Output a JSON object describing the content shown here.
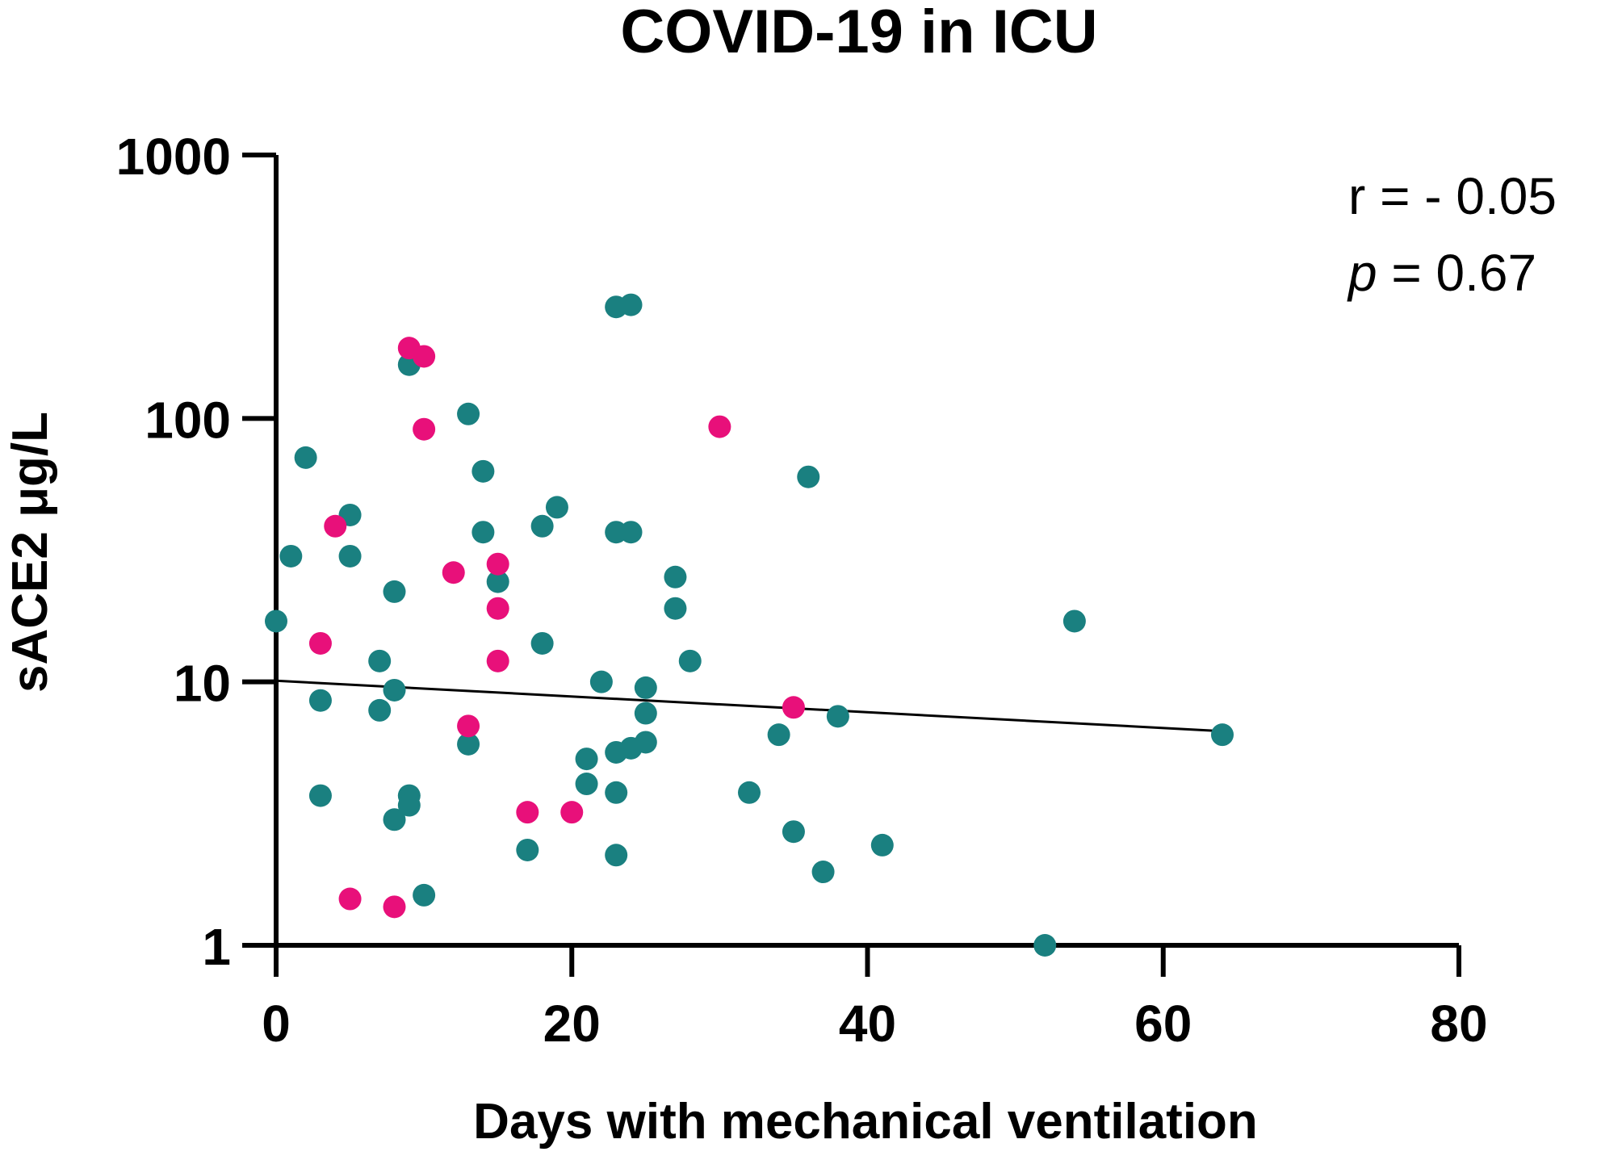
{
  "chart_data": {
    "type": "scatter",
    "title": "COVID-19 in ICU",
    "xlabel": "Days with mechanical ventilation",
    "ylabel": "sACE2 μg/L",
    "xlim": [
      0,
      80
    ],
    "ylim": [
      1,
      1000
    ],
    "yscale": "log",
    "grid": false,
    "x_ticks": [
      0,
      20,
      40,
      60,
      80
    ],
    "y_ticks": [
      1,
      10,
      100,
      1000
    ],
    "x_tick_labels": [
      "0",
      "20",
      "40",
      "60",
      "80"
    ],
    "y_tick_labels": [
      "1",
      "10",
      "100",
      "1000"
    ],
    "series": [
      {
        "name": "teal",
        "color": "#1a8080",
        "points": [
          [
            0,
            17
          ],
          [
            1,
            30
          ],
          [
            2,
            71
          ],
          [
            3,
            8.5
          ],
          [
            3,
            3.7
          ],
          [
            5,
            43
          ],
          [
            5,
            30
          ],
          [
            7,
            12
          ],
          [
            7,
            7.8
          ],
          [
            8,
            22
          ],
          [
            8,
            9.3
          ],
          [
            8,
            3.0
          ],
          [
            9,
            160
          ],
          [
            9,
            3.7
          ],
          [
            9,
            3.4
          ],
          [
            10,
            1.55
          ],
          [
            13,
            104
          ],
          [
            13,
            5.8
          ],
          [
            14,
            63
          ],
          [
            14,
            37
          ],
          [
            15,
            24
          ],
          [
            17,
            2.3
          ],
          [
            18,
            39
          ],
          [
            18,
            14
          ],
          [
            19,
            46
          ],
          [
            21,
            5.1
          ],
          [
            21,
            4.1
          ],
          [
            22,
            10
          ],
          [
            23,
            265
          ],
          [
            23,
            37
          ],
          [
            23,
            5.4
          ],
          [
            23,
            3.8
          ],
          [
            23,
            2.2
          ],
          [
            24,
            270
          ],
          [
            24,
            37
          ],
          [
            24,
            5.6
          ],
          [
            25,
            9.5
          ],
          [
            25,
            7.6
          ],
          [
            25,
            5.9
          ],
          [
            27,
            25
          ],
          [
            27,
            19
          ],
          [
            28,
            12
          ],
          [
            32,
            3.8
          ],
          [
            34,
            6.3
          ],
          [
            35,
            2.7
          ],
          [
            36,
            60
          ],
          [
            37,
            1.9
          ],
          [
            38,
            7.4
          ],
          [
            41,
            2.4
          ],
          [
            52,
            1.0
          ],
          [
            54,
            17
          ],
          [
            64,
            6.3
          ]
        ]
      },
      {
        "name": "pink",
        "color": "#e8107a",
        "points": [
          [
            3,
            14
          ],
          [
            4,
            39
          ],
          [
            5,
            1.5
          ],
          [
            8,
            1.4
          ],
          [
            9,
            185
          ],
          [
            10,
            172
          ],
          [
            10,
            91
          ],
          [
            12,
            26
          ],
          [
            13,
            6.8
          ],
          [
            15,
            28
          ],
          [
            15,
            19
          ],
          [
            15,
            12
          ],
          [
            17,
            3.2
          ],
          [
            20,
            3.2
          ],
          [
            30,
            93
          ],
          [
            35,
            8.0
          ]
        ]
      }
    ],
    "regression": {
      "x_start": 0,
      "y_start": 10.1,
      "x_end": 64,
      "y_end": 6.5,
      "color": "#000000"
    },
    "annotation": {
      "r_label": "r = - 0.05",
      "p_symbol": "p",
      "p_value_text": " = 0.67",
      "placement": "top-right"
    }
  }
}
